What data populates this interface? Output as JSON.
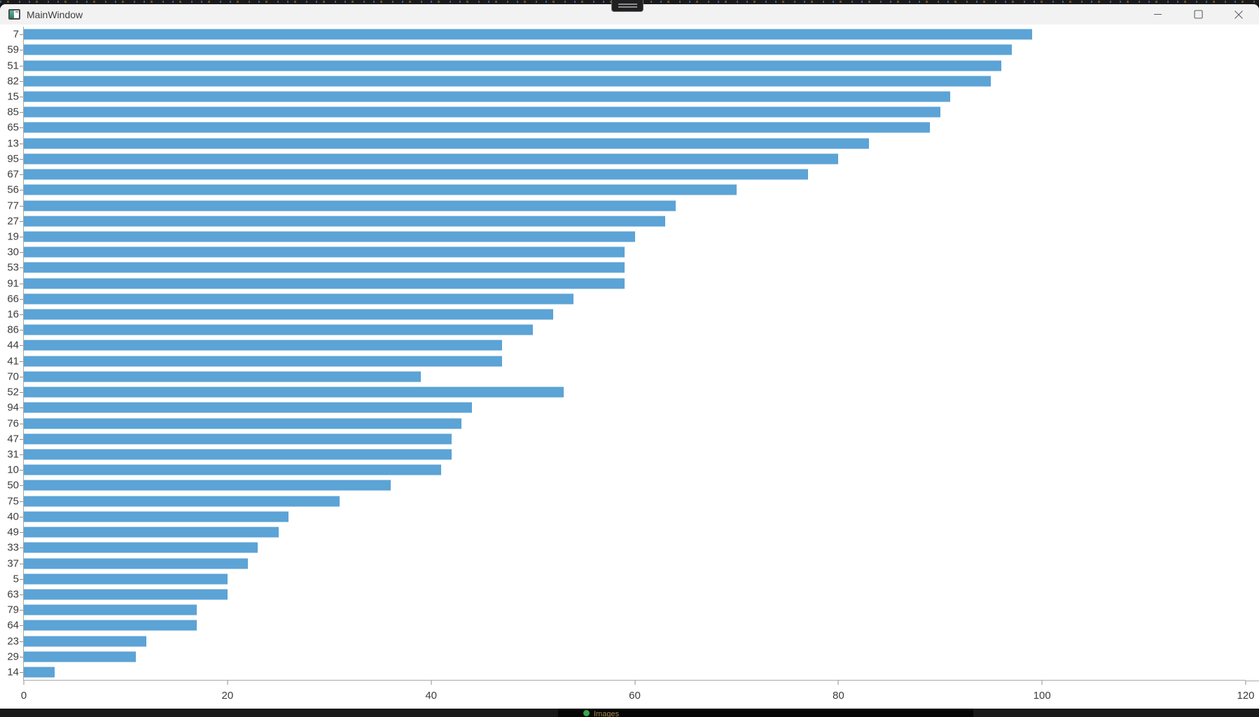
{
  "window": {
    "title": "MainWindow",
    "controls": {
      "minimize": "minimize",
      "maximize": "maximize",
      "close": "close"
    }
  },
  "desktop": {
    "taskbar_item_label": "Images"
  },
  "chart_data": {
    "type": "bar",
    "orientation": "horizontal",
    "title": "",
    "xlabel": "",
    "ylabel": "",
    "grid": false,
    "legend": null,
    "xlim": [
      0,
      120
    ],
    "x_ticks": [
      0,
      20,
      40,
      60,
      80,
      100,
      120
    ],
    "categories": [
      "7",
      "59",
      "51",
      "82",
      "15",
      "85",
      "65",
      "13",
      "95",
      "67",
      "56",
      "77",
      "27",
      "19",
      "30",
      "53",
      "91",
      "66",
      "16",
      "86",
      "44",
      "41",
      "70",
      "52",
      "94",
      "76",
      "47",
      "31",
      "10",
      "50",
      "75",
      "40",
      "49",
      "33",
      "37",
      "5",
      "63",
      "79",
      "64",
      "23",
      "29",
      "14"
    ],
    "values": [
      99,
      97,
      96,
      95,
      91,
      90,
      89,
      83,
      80,
      77,
      70,
      64,
      63,
      60,
      59,
      59,
      59,
      54,
      52,
      50,
      47,
      47,
      39,
      53,
      44,
      43,
      42,
      42,
      41,
      36,
      31,
      26,
      25,
      23,
      22,
      20,
      20,
      17,
      17,
      12,
      11,
      3
    ],
    "bar_color": "#5ca3d6",
    "axis_color": "#a8a8a8",
    "tick_label_color": "#3c3c3c"
  }
}
